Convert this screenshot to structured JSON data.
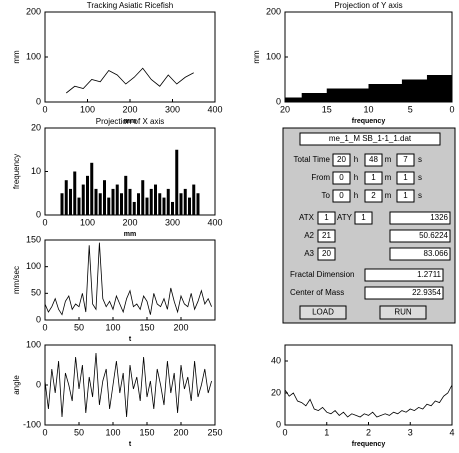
{
  "chart_data": [
    {
      "type": "line",
      "title": "Tracking Asiatic Ricefish",
      "xlabel": "mm",
      "ylabel": "mm",
      "color": "#000000",
      "x": [
        50,
        70,
        90,
        110,
        130,
        150,
        170,
        190,
        210,
        230,
        250,
        270,
        290,
        310,
        330,
        350
      ],
      "values": [
        20,
        35,
        30,
        50,
        45,
        70,
        60,
        40,
        55,
        75,
        50,
        35,
        60,
        40,
        55,
        65
      ],
      "xlim": [
        0,
        400
      ],
      "ylim": [
        0,
        200
      ],
      "xticks": [
        0,
        100,
        200,
        300,
        400
      ],
      "yticks": [
        0,
        100,
        200
      ]
    },
    {
      "type": "barh",
      "title": "Projection of Y axis",
      "xlabel": "frequency",
      "ylabel": "mm",
      "color": "#000000",
      "y": [
        5,
        15,
        25,
        35,
        45,
        55
      ],
      "values": [
        20,
        18,
        15,
        10,
        6,
        3
      ],
      "xlim": [
        20,
        0
      ],
      "ylim": [
        0,
        200
      ],
      "xticks": [
        20,
        15,
        10,
        5,
        0
      ],
      "yticks": [
        0,
        100,
        200
      ]
    },
    {
      "type": "bar",
      "title": "Projection of X axis",
      "xlabel": "mm",
      "ylabel": "frequency",
      "color": "#000000",
      "x": [
        40,
        50,
        60,
        70,
        80,
        90,
        100,
        110,
        120,
        130,
        140,
        150,
        160,
        170,
        180,
        190,
        200,
        210,
        220,
        230,
        240,
        250,
        260,
        270,
        280,
        290,
        300,
        310,
        320,
        330,
        340,
        350,
        360
      ],
      "values": [
        5,
        8,
        6,
        10,
        4,
        7,
        9,
        12,
        6,
        5,
        8,
        4,
        6,
        7,
        5,
        9,
        6,
        3,
        5,
        8,
        4,
        6,
        7,
        5,
        4,
        6,
        3,
        15,
        5,
        6,
        4,
        7,
        5
      ],
      "xlim": [
        0,
        400
      ],
      "ylim": [
        0,
        20
      ],
      "xticks": [
        0,
        100,
        200,
        300,
        400
      ],
      "yticks": [
        0,
        10,
        20
      ]
    },
    {
      "type": "line",
      "xlabel": "t",
      "ylabel": "mm/sec",
      "color": "#000000",
      "x": [
        0,
        5,
        10,
        15,
        20,
        25,
        30,
        35,
        40,
        45,
        50,
        55,
        60,
        65,
        70,
        75,
        80,
        85,
        90,
        95,
        100,
        105,
        110,
        115,
        120,
        125,
        130,
        135,
        140,
        145,
        150,
        155,
        160,
        165,
        170,
        175,
        180,
        185,
        190,
        195,
        200,
        205,
        210,
        215,
        220,
        225,
        230,
        235,
        240,
        245
      ],
      "values": [
        30,
        15,
        25,
        40,
        20,
        10,
        35,
        45,
        20,
        30,
        25,
        50,
        15,
        140,
        30,
        20,
        145,
        40,
        25,
        35,
        20,
        45,
        30,
        15,
        40,
        55,
        25,
        30,
        20,
        45,
        35,
        10,
        50,
        30,
        25,
        40,
        20,
        60,
        35,
        15,
        45,
        30,
        25,
        50,
        20,
        35,
        55,
        30,
        40,
        25
      ],
      "xlim": [
        0,
        250
      ],
      "ylim": [
        0,
        150
      ],
      "xticks": [
        0,
        50,
        100,
        150,
        200
      ],
      "yticks": [
        0,
        50,
        100,
        150
      ]
    },
    {
      "type": "line",
      "xlabel": "t",
      "ylabel": "angle",
      "color": "#000000",
      "x": [
        0,
        5,
        10,
        15,
        20,
        25,
        30,
        35,
        40,
        45,
        50,
        55,
        60,
        65,
        70,
        75,
        80,
        85,
        90,
        95,
        100,
        105,
        110,
        115,
        120,
        125,
        130,
        135,
        140,
        145,
        150,
        155,
        160,
        165,
        170,
        175,
        180,
        185,
        190,
        195,
        200,
        205,
        210,
        215,
        220,
        225,
        230,
        235,
        240,
        245
      ],
      "values": [
        10,
        -60,
        40,
        -20,
        60,
        -80,
        30,
        0,
        -40,
        70,
        -10,
        50,
        -70,
        20,
        -30,
        80,
        -50,
        10,
        40,
        -60,
        0,
        60,
        -20,
        30,
        -80,
        50,
        -10,
        20,
        -40,
        70,
        -30,
        10,
        -60,
        40,
        0,
        -50,
        60,
        -20,
        30,
        -70,
        50,
        -10,
        20,
        -40,
        60,
        -30,
        0,
        40,
        -20,
        10
      ],
      "xlim": [
        0,
        250
      ],
      "ylim": [
        -100,
        100
      ],
      "xticks": [
        0,
        50,
        100,
        150,
        200,
        250
      ],
      "yticks": [
        -100,
        0,
        100
      ]
    },
    {
      "type": "line",
      "xlabel": "frequency",
      "color": "#000000",
      "x": [
        0,
        0.1,
        0.2,
        0.3,
        0.4,
        0.5,
        0.6,
        0.7,
        0.8,
        0.9,
        1,
        1.1,
        1.2,
        1.3,
        1.4,
        1.5,
        1.6,
        1.7,
        1.8,
        1.9,
        2,
        2.1,
        2.2,
        2.3,
        2.4,
        2.5,
        2.6,
        2.7,
        2.8,
        2.9,
        3,
        3.1,
        3.2,
        3.3,
        3.4,
        3.5,
        3.6,
        3.7,
        3.8,
        3.9,
        4
      ],
      "values": [
        22,
        18,
        20,
        15,
        14,
        12,
        16,
        10,
        9,
        11,
        8,
        7,
        9,
        6,
        8,
        5,
        7,
        6,
        5,
        7,
        6,
        8,
        5,
        6,
        7,
        6,
        8,
        7,
        9,
        8,
        10,
        9,
        11,
        10,
        13,
        12,
        15,
        14,
        18,
        20,
        25
      ],
      "xlim": [
        0,
        4
      ],
      "ylim": [
        0,
        50
      ],
      "xticks": [
        0,
        1,
        2,
        3,
        4
      ],
      "yticks": [
        0,
        20,
        40
      ]
    }
  ],
  "panel": {
    "file": "me_1_M SB_1-1_1.dat",
    "time_rows": [
      {
        "label": "Total Time",
        "fields": [
          "20",
          "48",
          "7"
        ],
        "units": [
          "h",
          "m",
          "s"
        ]
      },
      {
        "label": "From",
        "fields": [
          "0",
          "1",
          "1"
        ],
        "units": [
          "h",
          "m",
          "s"
        ]
      },
      {
        "label": "To",
        "fields": [
          "0",
          "2",
          "1"
        ],
        "units": [
          "h",
          "m",
          "s"
        ]
      }
    ],
    "params": [
      {
        "label": "ATX",
        "value": "1",
        "result": "1326"
      },
      {
        "label": "A2",
        "value": "21",
        "result": "50.6224"
      },
      {
        "label": "A3",
        "value": "20",
        "result": "83.066"
      }
    ],
    "aty": {
      "label": "ATY",
      "value": "1"
    },
    "fractal": {
      "label": "Fractal Dimension",
      "value": "1.2711"
    },
    "center": {
      "label": "Center of Mass",
      "value": "22.9354"
    },
    "buttons": [
      "LOAD",
      "RUN"
    ]
  }
}
